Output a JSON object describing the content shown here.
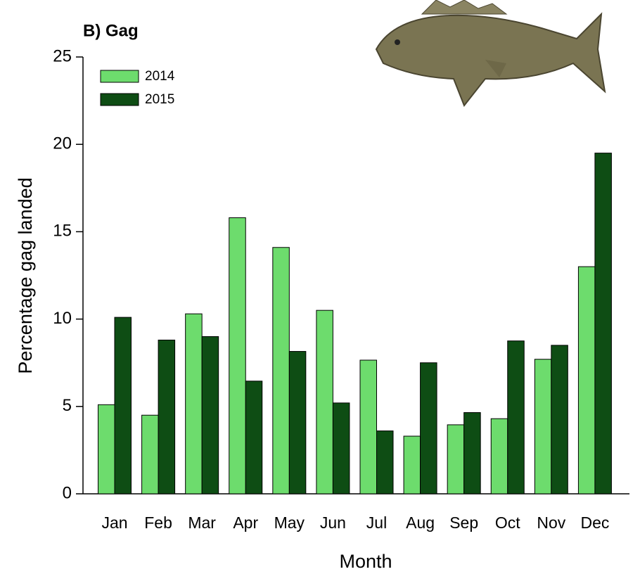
{
  "chart_data": {
    "type": "bar",
    "title": "B) Gag",
    "x_label": "Month",
    "y_label": "Percentage gag landed",
    "categories": [
      "Jan",
      "Feb",
      "Mar",
      "Apr",
      "May",
      "Jun",
      "Jul",
      "Aug",
      "Sep",
      "Oct",
      "Nov",
      "Dec"
    ],
    "series": [
      {
        "name": "2014",
        "color": "#6ddc6d",
        "values": [
          5.1,
          4.5,
          10.3,
          15.8,
          14.1,
          10.5,
          7.65,
          3.3,
          3.95,
          4.3,
          7.7,
          13.0
        ]
      },
      {
        "name": "2015",
        "color": "#0e4d14",
        "values": [
          10.1,
          8.8,
          9.0,
          6.45,
          8.15,
          5.2,
          3.6,
          7.5,
          4.65,
          8.75,
          8.5,
          19.5
        ]
      }
    ],
    "ylim": [
      0,
      25
    ],
    "yticks": [
      0,
      5,
      10,
      15,
      20,
      25
    ],
    "legend": "upper left"
  }
}
